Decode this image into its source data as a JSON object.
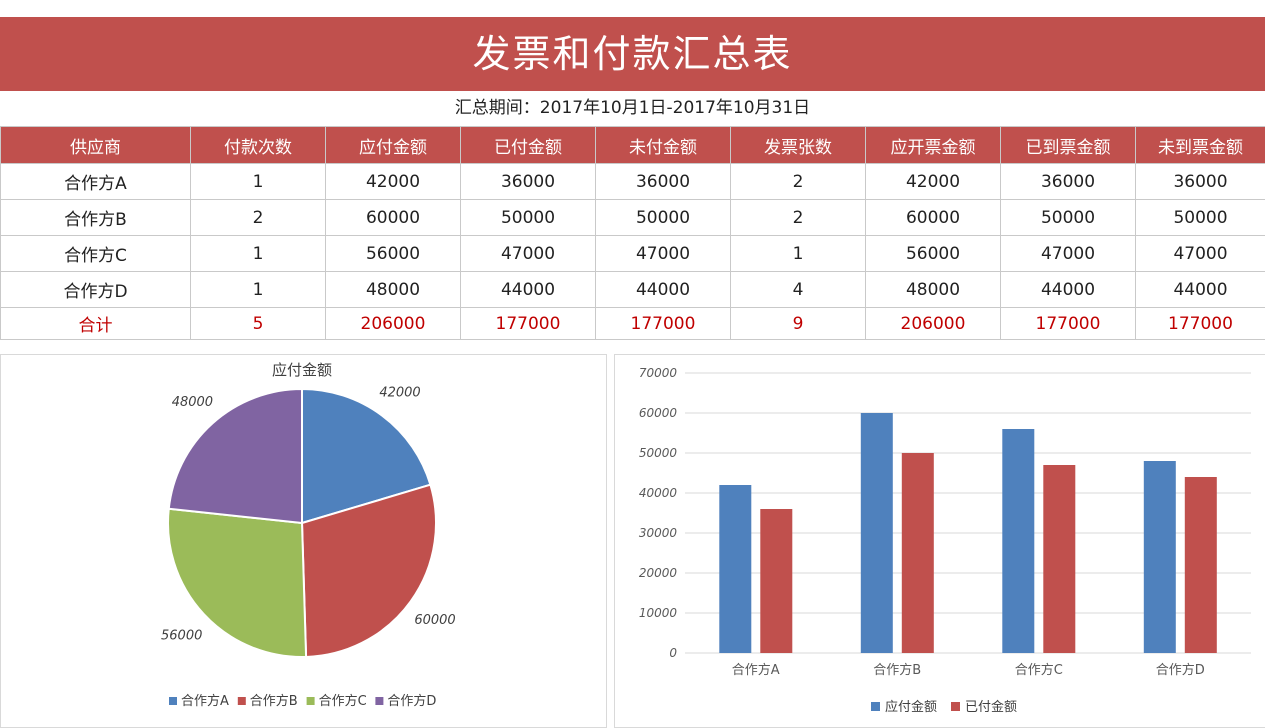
{
  "header": {
    "title": "发票和付款汇总表",
    "period": "汇总期间：2017年10月1日-2017年10月31日"
  },
  "table": {
    "columns": [
      "供应商",
      "付款次数",
      "应付金额",
      "已付金额",
      "未付金额",
      "发票张数",
      "应开票金额",
      "已到票金额",
      "未到票金额"
    ],
    "rows": [
      [
        "合作方A",
        "1",
        "42000",
        "36000",
        "36000",
        "2",
        "42000",
        "36000",
        "36000"
      ],
      [
        "合作方B",
        "2",
        "60000",
        "50000",
        "50000",
        "2",
        "60000",
        "50000",
        "50000"
      ],
      [
        "合作方C",
        "1",
        "56000",
        "47000",
        "47000",
        "1",
        "56000",
        "47000",
        "47000"
      ],
      [
        "合作方D",
        "1",
        "48000",
        "44000",
        "44000",
        "4",
        "48000",
        "44000",
        "44000"
      ]
    ],
    "total": [
      "合计",
      "5",
      "206000",
      "177000",
      "177000",
      "9",
      "206000",
      "177000",
      "177000"
    ]
  },
  "colors": {
    "header_bg": "#c0504d",
    "total_text": "#c00000",
    "blue": "#4f81bd",
    "red": "#c0504d",
    "green": "#9bbb59",
    "purple": "#8064a2"
  },
  "chart_data": [
    {
      "type": "pie",
      "title": "应付金额",
      "categories": [
        "合作方A",
        "合作方B",
        "合作方C",
        "合作方D"
      ],
      "values": [
        42000,
        60000,
        56000,
        48000
      ],
      "colors": [
        "#4f81bd",
        "#c0504d",
        "#9bbb59",
        "#8064a2"
      ],
      "legend": "bottom"
    },
    {
      "type": "bar",
      "title": "",
      "categories": [
        "合作方A",
        "合作方B",
        "合作方C",
        "合作方D"
      ],
      "series": [
        {
          "name": "应付金额",
          "values": [
            42000,
            60000,
            56000,
            48000
          ],
          "color": "#4f81bd"
        },
        {
          "name": "已付金额",
          "values": [
            36000,
            50000,
            47000,
            44000
          ],
          "color": "#c0504d"
        }
      ],
      "ylim": [
        0,
        70000
      ],
      "yticks": [
        "0",
        "10000",
        "20000",
        "30000",
        "40000",
        "50000",
        "60000",
        "70000"
      ],
      "grid": true,
      "legend": "bottom"
    }
  ]
}
